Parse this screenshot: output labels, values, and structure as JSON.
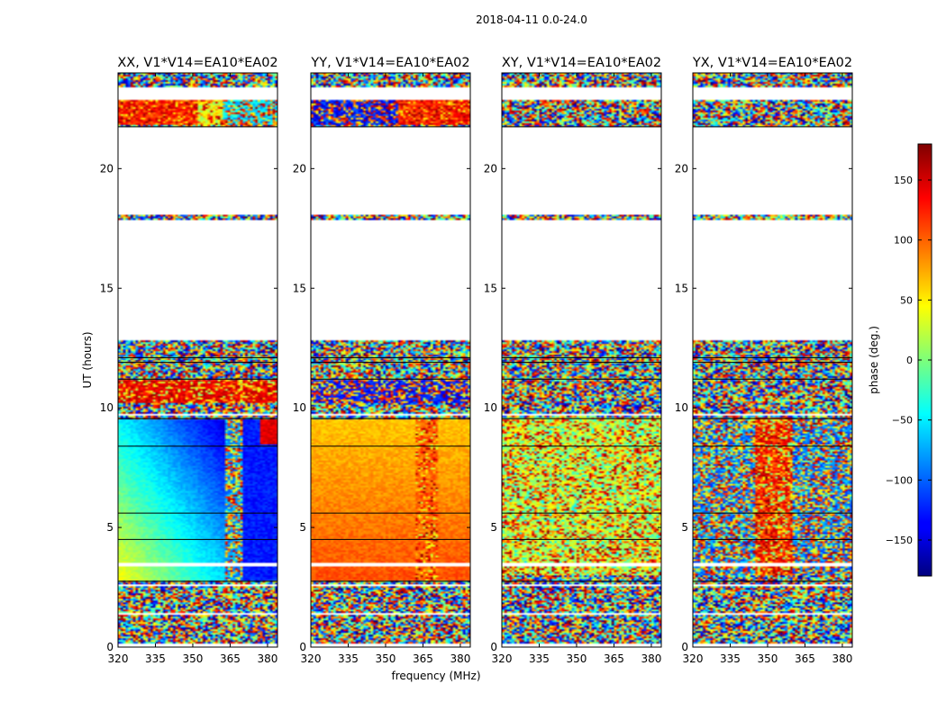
{
  "suptitle": "2018-04-11 0.0-24.0",
  "shared_ylabel": "UT (hours)",
  "shared_xlabel": "frequency (MHz)",
  "chart_data": {
    "type": "heatmap",
    "colormap": "jet",
    "x_axis": {
      "label": "frequency (MHz)",
      "unit": "MHz",
      "range": [
        320,
        384
      ],
      "ticks": [
        320,
        335,
        350,
        365,
        380
      ],
      "tick_labels": [
        "320",
        "335",
        "350",
        "365",
        "380"
      ]
    },
    "y_axis": {
      "label": "UT (hours)",
      "unit": "hours",
      "range": [
        0,
        24
      ],
      "ticks": [
        0,
        5,
        10,
        15,
        20
      ],
      "tick_labels": [
        "0",
        "5",
        "10",
        "15",
        "20"
      ]
    },
    "colorbar": {
      "label": "phase (deg.)",
      "range": [
        -180,
        180
      ],
      "ticks": [
        -150,
        -100,
        -50,
        0,
        50,
        100,
        150
      ],
      "tick_labels": [
        "−150",
        "−100",
        "−50",
        "0",
        "50",
        "100",
        "150"
      ]
    },
    "data_gaps_hours": [
      [
        0.0,
        0.15
      ],
      [
        1.35,
        1.45
      ],
      [
        2.55,
        2.65
      ],
      [
        3.4,
        3.5
      ],
      [
        9.65,
        9.75
      ],
      [
        12.85,
        17.85
      ],
      [
        18.05,
        21.75
      ],
      [
        22.9,
        23.4
      ]
    ],
    "panels": [
      {
        "title": "XX, V1*V14=EA10*EA02",
        "pattern": "xx"
      },
      {
        "title": "YY, V1*V14=EA10*EA02",
        "pattern": "yy"
      },
      {
        "title": "XY, V1*V14=EA10*EA02",
        "pattern": "xy"
      },
      {
        "title": "YX, V1*V14=EA10*EA02",
        "pattern": "yx"
      }
    ]
  }
}
